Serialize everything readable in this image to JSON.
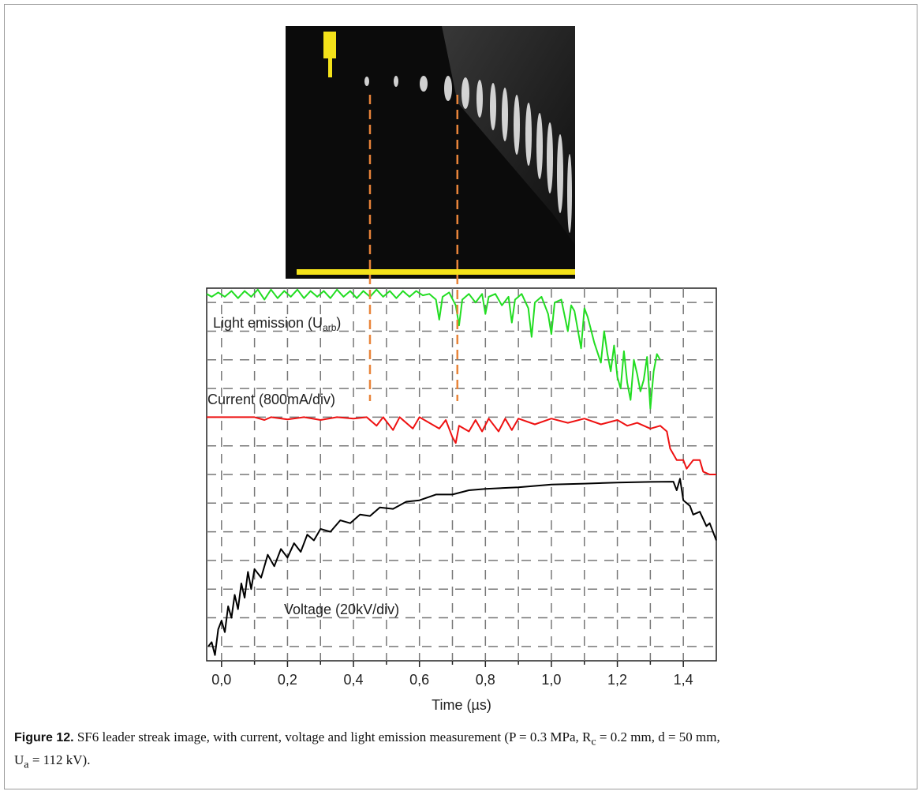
{
  "chart_data": {
    "type": "line",
    "xlabel": "Time (µs)",
    "xlim": [
      -0.045,
      1.5
    ],
    "ylim": [
      -0.5,
      12.5
    ],
    "xticks": [
      {
        "value": 0,
        "label": "0,0"
      },
      {
        "value": 0.2,
        "label": "0,2"
      },
      {
        "value": 0.4,
        "label": "0,4"
      },
      {
        "value": 0.6,
        "label": "0,6"
      },
      {
        "value": 0.8,
        "label": "0,8"
      },
      {
        "value": 1.0,
        "label": "1,0"
      },
      {
        "value": 1.2,
        "label": "1,2"
      },
      {
        "value": 1.4,
        "label": "1,4"
      }
    ],
    "xminor_ticks": [
      0.1,
      0.3,
      0.5,
      0.7,
      0.9,
      1.1,
      1.3
    ],
    "ygrid": [
      0,
      1,
      2,
      3,
      4,
      5,
      6,
      7,
      8,
      9,
      10,
      11,
      12
    ],
    "grid": true,
    "markers": [
      0.45,
      0.715
    ],
    "marker_color": "#e8843a",
    "annotations": [
      {
        "text": "Light emission (U",
        "sub": "arb",
        "after": ")"
      },
      {
        "text": "Current (800mA/div)"
      },
      {
        "text": "Voltage (20kV/div)"
      }
    ],
    "series": [
      {
        "color": "#22dd22",
        "x": [
          -0.045,
          -0.03,
          -0.01,
          0.01,
          0.03,
          0.05,
          0.07,
          0.09,
          0.11,
          0.13,
          0.15,
          0.17,
          0.19,
          0.21,
          0.23,
          0.25,
          0.27,
          0.29,
          0.31,
          0.33,
          0.35,
          0.37,
          0.39,
          0.41,
          0.43,
          0.45,
          0.47,
          0.49,
          0.51,
          0.53,
          0.55,
          0.57,
          0.59,
          0.61,
          0.63,
          0.65,
          0.66,
          0.67,
          0.69,
          0.71,
          0.72,
          0.73,
          0.75,
          0.77,
          0.79,
          0.8,
          0.81,
          0.83,
          0.85,
          0.87,
          0.88,
          0.89,
          0.91,
          0.93,
          0.94,
          0.95,
          0.97,
          0.99,
          1.0,
          1.01,
          1.03,
          1.05,
          1.06,
          1.07,
          1.09,
          1.1,
          1.11,
          1.13,
          1.15,
          1.16,
          1.17,
          1.18,
          1.19,
          1.2,
          1.21,
          1.22,
          1.23,
          1.24,
          1.25,
          1.26,
          1.27,
          1.28,
          1.29,
          1.3,
          1.31,
          1.32,
          1.33
        ],
        "values": [
          12.3,
          12.2,
          12.35,
          12.2,
          12.4,
          12.15,
          12.4,
          12.2,
          12.45,
          12.1,
          12.45,
          12.15,
          12.4,
          12.2,
          12.45,
          12.15,
          12.4,
          12.2,
          12.4,
          12.15,
          12.45,
          12.2,
          12.4,
          12.15,
          12.4,
          12.2,
          12.45,
          12.2,
          12.4,
          12.15,
          12.4,
          12.2,
          12.4,
          12.25,
          12.3,
          12.1,
          11.4,
          12.2,
          12.35,
          11.9,
          11.2,
          12.1,
          12.3,
          12.0,
          12.3,
          11.6,
          12.2,
          12.3,
          11.9,
          12.2,
          11.3,
          12.1,
          12.3,
          11.8,
          10.8,
          12.0,
          12.2,
          11.6,
          10.9,
          12.0,
          12.1,
          11.0,
          11.9,
          11.7,
          10.4,
          11.8,
          11.5,
          10.6,
          9.9,
          11.0,
          10.2,
          9.6,
          10.5,
          9.4,
          9.0,
          10.3,
          9.2,
          8.6,
          10.0,
          9.5,
          8.9,
          9.3,
          10.1,
          8.3,
          9.6,
          10.2,
          10.0
        ]
      },
      {
        "color": "#ee1111",
        "x": [
          -0.045,
          0.1,
          0.13,
          0.15,
          0.2,
          0.25,
          0.3,
          0.35,
          0.4,
          0.44,
          0.47,
          0.49,
          0.52,
          0.54,
          0.58,
          0.6,
          0.66,
          0.68,
          0.7,
          0.71,
          0.72,
          0.75,
          0.77,
          0.79,
          0.81,
          0.84,
          0.86,
          0.88,
          0.9,
          0.95,
          1.0,
          1.05,
          1.1,
          1.15,
          1.2,
          1.23,
          1.26,
          1.3,
          1.33,
          1.35,
          1.36,
          1.38,
          1.4,
          1.41,
          1.43,
          1.45,
          1.46,
          1.48,
          1.5
        ],
        "values": [
          8.0,
          8.0,
          7.9,
          8.0,
          7.92,
          8.0,
          7.9,
          8.0,
          7.95,
          8.0,
          7.7,
          8.0,
          7.55,
          8.0,
          7.6,
          8.0,
          7.6,
          7.9,
          7.3,
          7.1,
          7.7,
          7.5,
          7.9,
          7.5,
          7.95,
          7.5,
          7.95,
          7.55,
          7.95,
          7.75,
          7.95,
          7.8,
          7.95,
          7.75,
          7.9,
          7.7,
          7.8,
          7.6,
          7.7,
          7.5,
          6.9,
          6.5,
          6.5,
          6.2,
          6.5,
          6.5,
          6.1,
          6.0,
          6.0
        ]
      },
      {
        "color": "#000000",
        "x": [
          -0.04,
          -0.03,
          -0.02,
          -0.01,
          0.0,
          0.01,
          0.02,
          0.03,
          0.04,
          0.05,
          0.06,
          0.07,
          0.08,
          0.09,
          0.1,
          0.12,
          0.14,
          0.16,
          0.18,
          0.2,
          0.22,
          0.24,
          0.26,
          0.28,
          0.3,
          0.33,
          0.36,
          0.39,
          0.42,
          0.45,
          0.48,
          0.52,
          0.56,
          0.6,
          0.65,
          0.7,
          0.75,
          0.8,
          0.9,
          1.0,
          1.1,
          1.2,
          1.3,
          1.37,
          1.38,
          1.39,
          1.4,
          1.42,
          1.43,
          1.45,
          1.47,
          1.48,
          1.5
        ],
        "values": [
          0.0,
          0.15,
          -0.3,
          0.6,
          0.9,
          0.5,
          1.4,
          1.0,
          1.8,
          1.3,
          2.2,
          1.7,
          2.6,
          2.0,
          2.7,
          2.4,
          3.2,
          2.8,
          3.4,
          3.1,
          3.6,
          3.3,
          3.9,
          3.7,
          4.1,
          4.0,
          4.4,
          4.3,
          4.6,
          4.55,
          4.85,
          4.8,
          5.05,
          5.1,
          5.3,
          5.3,
          5.45,
          5.5,
          5.55,
          5.65,
          5.68,
          5.72,
          5.74,
          5.75,
          5.45,
          5.85,
          5.1,
          4.9,
          4.6,
          4.7,
          4.2,
          4.3,
          3.7
        ]
      }
    ]
  },
  "caption": {
    "label": "Figure 12.",
    "parts": [
      {
        "text": " SF6 leader streak image, with current, voltage and light emission measurement (P = 0.3 MPa, R"
      },
      {
        "sub": "c"
      },
      {
        "text": " = 0.2 mm, d = 50 mm,"
      },
      {
        "text": "U"
      },
      {
        "sub": "a"
      },
      {
        "text": " = 112 kV)."
      }
    ]
  }
}
